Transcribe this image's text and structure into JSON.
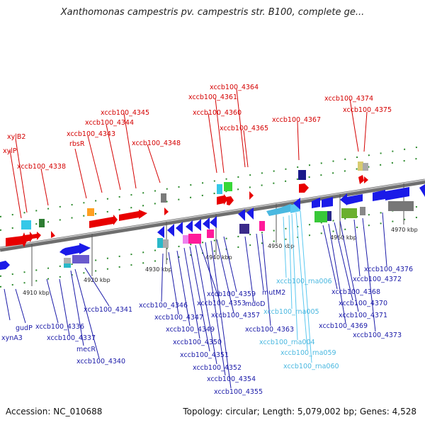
{
  "title": "Xanthomonas campestris pv. campestris str. B100, complete ge...",
  "footer": {
    "accession": "Accession: NC_010688",
    "summary": "Topology: circular; Length: 5,079,002 bp; Genes: 4,528"
  },
  "ticks": [
    "4910 kbp",
    "4920 kbp",
    "4930 kbp",
    "4940 kbp",
    "4950 kbp",
    "4960 kbp",
    "4970 kbp"
  ],
  "labels_top": [
    "xylB2",
    "xylP",
    "xccb100_4338",
    "rbsR",
    "xccb100_4343",
    "xccb100_4344",
    "xccb100_4345",
    "xccb100_4348",
    "xccb100_4360",
    "xccb100_4361",
    "xccb100_4364",
    "xccb100_4365",
    "xccb100_4367",
    "xccb100_4374",
    "xccb100_4375"
  ],
  "labels_bottom": [
    "xynA3",
    "gudP",
    "xccb100_4336",
    "xccb100_4337",
    "mecR",
    "xccb100_4340",
    "xccb100_4341",
    "xccb100_4346",
    "xccb100_4347",
    "xccb100_4349",
    "xccb100_4350",
    "xccb100_4351",
    "xccb100_4352",
    "xccb100_4353",
    "xccb100_4354",
    "xccb100_4355",
    "xccb100_4357",
    "xccb100_4359",
    "mdoD",
    "mutM2",
    "xccb100_4363",
    "xccb100_4368",
    "xccb100_4369",
    "xccb100_4370",
    "xccb100_4371",
    "xccb100_4372",
    "xccb100_4373",
    "xccb100_4376"
  ],
  "labels_rna": [
    "xccb100_rna006",
    "xccb100_rna005",
    "xccb100_rna004",
    "xccb100_rna059",
    "xccb100_rna060"
  ],
  "colors": {
    "forward_gene": "#e80000",
    "reverse_gene": "#1010e0",
    "rna": "#5bc8f0",
    "backbone": "#8a8a8a",
    "tick": "#2e8b2e"
  }
}
